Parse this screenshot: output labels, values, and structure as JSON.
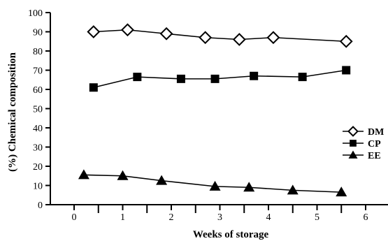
{
  "chart_data": {
    "type": "line",
    "xlabel": "Weeks of storage",
    "ylabel": "(%) Chemical composition",
    "xlim": [
      -0.5,
      6.5
    ],
    "ylim": [
      0,
      100
    ],
    "x_ticks": [
      "0",
      "1",
      "2",
      "3",
      "4",
      "5",
      "6"
    ],
    "y_ticks": [
      "0",
      "10",
      "20",
      "30",
      "40",
      "50",
      "60",
      "70",
      "80",
      "90",
      "100"
    ],
    "legend_position": "right",
    "series": [
      {
        "name": "DM",
        "marker": "diamond-open",
        "x": [
          0.4,
          1.1,
          1.9,
          2.7,
          3.4,
          4.1,
          5.6
        ],
        "y": [
          90,
          91,
          89,
          87,
          86,
          87,
          85
        ]
      },
      {
        "name": "CP",
        "marker": "square-filled",
        "x": [
          0.4,
          1.3,
          2.2,
          2.9,
          3.7,
          4.7,
          5.6
        ],
        "y": [
          61,
          66.5,
          65.5,
          65.5,
          67,
          66.5,
          70
        ]
      },
      {
        "name": "EE",
        "marker": "triangle-filled",
        "x": [
          0.2,
          1.0,
          1.8,
          2.9,
          3.6,
          4.5,
          5.5
        ],
        "y": [
          15.5,
          15,
          12.5,
          9.5,
          9,
          7.5,
          6.5
        ]
      }
    ]
  }
}
